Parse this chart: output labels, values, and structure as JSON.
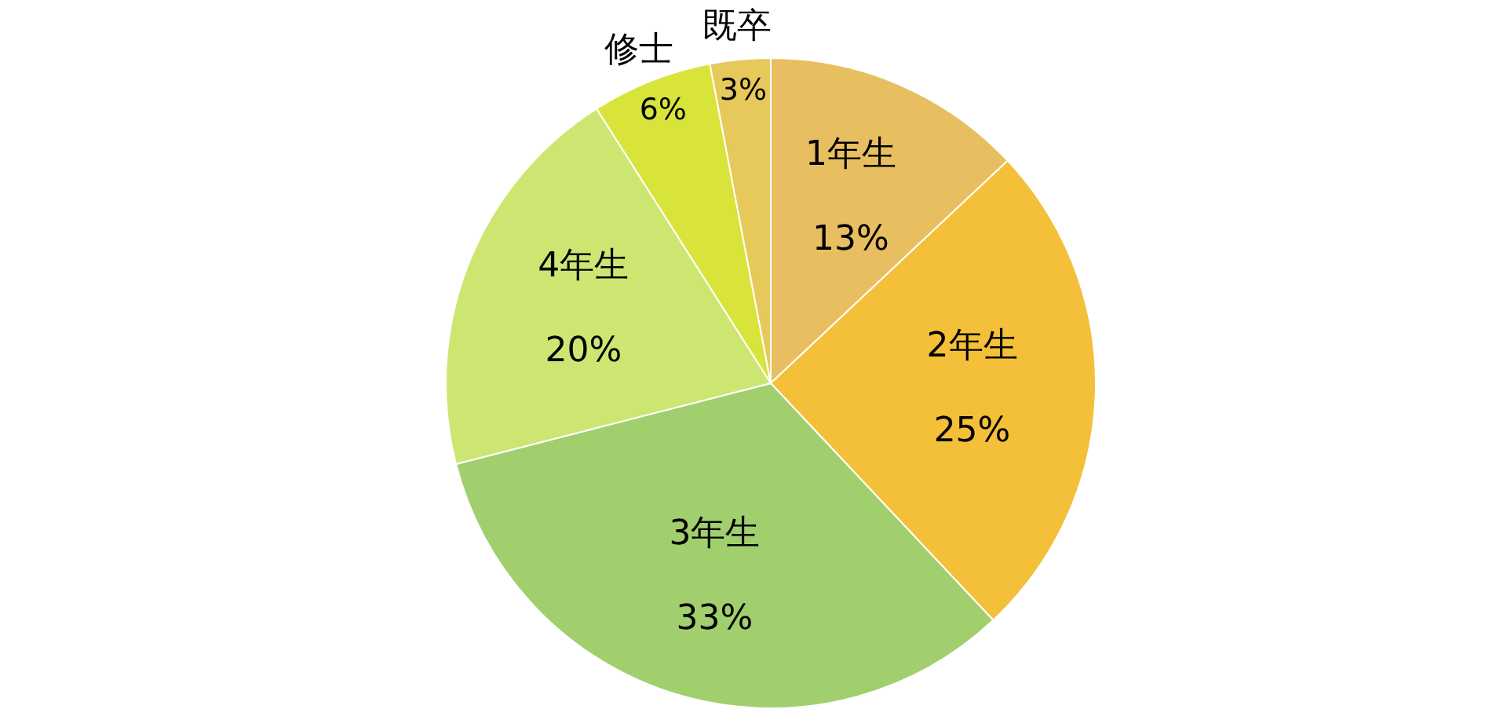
{
  "chart_data": {
    "type": "pie",
    "categories": [
      "1年生",
      "2年生",
      "3年生",
      "4年生",
      "修士",
      "既卒"
    ],
    "values": [
      13,
      25,
      33,
      20,
      6,
      3
    ],
    "value_labels": [
      "13%",
      "25%",
      "33%",
      "20%",
      "6%",
      "3%"
    ],
    "colors": [
      "#e8bf60",
      "#f4c03a",
      "#a2cf6e",
      "#cde672",
      "#d9e43b",
      "#e6c95a"
    ]
  }
}
